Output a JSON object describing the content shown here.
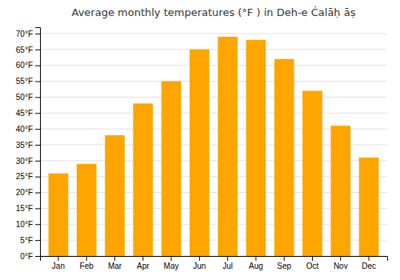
{
  "chart_data": {
    "type": "bar",
    "title": "Average monthly temperatures (°F ) in Deh-e Ċalāḥ āṣ",
    "categories": [
      "Jan",
      "Feb",
      "Mar",
      "Apr",
      "May",
      "Jun",
      "Jul",
      "Aug",
      "Sep",
      "Oct",
      "Nov",
      "Dec"
    ],
    "values": [
      26,
      29,
      38,
      48,
      55,
      65,
      69,
      68,
      62,
      52,
      41,
      31
    ],
    "color": "#FFA500",
    "ylim": [
      0,
      72
    ],
    "yticks": [
      {
        "value": 0,
        "label": "0°F"
      },
      {
        "value": 5,
        "label": "5°F"
      },
      {
        "value": 10,
        "label": "10°F"
      },
      {
        "value": 15,
        "label": "15°F"
      },
      {
        "value": 20,
        "label": "20°F"
      },
      {
        "value": 25,
        "label": "25°F"
      },
      {
        "value": 30,
        "label": "30°F"
      },
      {
        "value": 35,
        "label": "35°F"
      },
      {
        "value": 40,
        "label": "40°F"
      },
      {
        "value": 45,
        "label": "45°F"
      },
      {
        "value": 50,
        "label": "50°F"
      },
      {
        "value": 55,
        "label": "55°F"
      },
      {
        "value": 60,
        "label": "60°F"
      },
      {
        "value": 65,
        "label": "65°F"
      },
      {
        "value": 70,
        "label": "70°F"
      }
    ],
    "grid": true
  }
}
